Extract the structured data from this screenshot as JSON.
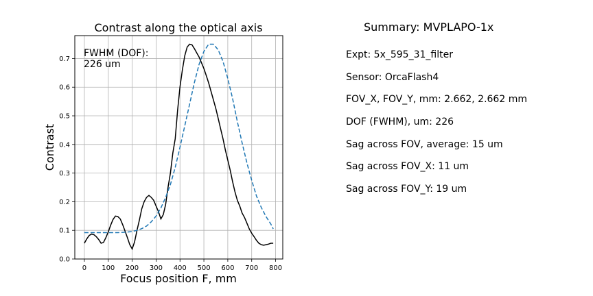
{
  "chart_data": {
    "type": "line",
    "title": "Contrast along the optical axis",
    "xlabel": "Focus position F, mm",
    "ylabel": "Contrast",
    "xlim": [
      -40,
      830
    ],
    "ylim": [
      0.0,
      0.78
    ],
    "xticks": [
      0,
      100,
      200,
      300,
      400,
      500,
      600,
      700,
      800
    ],
    "yticks": [
      0.0,
      0.1,
      0.2,
      0.3,
      0.4,
      0.5,
      0.6,
      0.7
    ],
    "grid": true,
    "annotation": "FWHM (DOF):\n226 um",
    "series": [
      {
        "style": "solid",
        "color": "#000000",
        "x": [
          0,
          10,
          20,
          30,
          40,
          50,
          60,
          70,
          80,
          90,
          100,
          110,
          120,
          130,
          140,
          150,
          160,
          170,
          180,
          190,
          200,
          210,
          220,
          230,
          240,
          250,
          260,
          270,
          280,
          290,
          300,
          310,
          320,
          330,
          340,
          350,
          360,
          370,
          380,
          390,
          400,
          410,
          420,
          430,
          440,
          450,
          460,
          470,
          480,
          490,
          500,
          510,
          520,
          530,
          540,
          550,
          560,
          570,
          580,
          590,
          600,
          610,
          620,
          630,
          640,
          650,
          660,
          670,
          680,
          690,
          700,
          710,
          720,
          730,
          740,
          750,
          760,
          770,
          780,
          790
        ],
        "y": [
          0.055,
          0.07,
          0.082,
          0.087,
          0.085,
          0.078,
          0.068,
          0.055,
          0.058,
          0.075,
          0.095,
          0.118,
          0.138,
          0.15,
          0.148,
          0.14,
          0.12,
          0.098,
          0.075,
          0.05,
          0.035,
          0.06,
          0.1,
          0.135,
          0.175,
          0.2,
          0.215,
          0.222,
          0.215,
          0.205,
          0.185,
          0.165,
          0.14,
          0.155,
          0.19,
          0.25,
          0.3,
          0.37,
          0.42,
          0.52,
          0.6,
          0.66,
          0.71,
          0.74,
          0.75,
          0.748,
          0.735,
          0.72,
          0.705,
          0.685,
          0.665,
          0.64,
          0.615,
          0.585,
          0.555,
          0.525,
          0.49,
          0.455,
          0.42,
          0.38,
          0.345,
          0.31,
          0.27,
          0.235,
          0.205,
          0.185,
          0.16,
          0.145,
          0.125,
          0.105,
          0.09,
          0.078,
          0.065,
          0.055,
          0.05,
          0.048,
          0.05,
          0.052,
          0.055,
          0.055
        ]
      },
      {
        "style": "dashed",
        "color": "#1f77b4",
        "x": [
          0,
          20,
          40,
          60,
          80,
          100,
          120,
          140,
          160,
          180,
          200,
          220,
          240,
          260,
          280,
          300,
          320,
          340,
          360,
          380,
          400,
          420,
          440,
          460,
          480,
          500,
          520,
          540,
          560,
          580,
          600,
          620,
          640,
          660,
          680,
          700,
          720,
          740,
          760,
          780,
          790
        ],
        "y": [
          0.092,
          0.092,
          0.092,
          0.092,
          0.092,
          0.092,
          0.092,
          0.092,
          0.093,
          0.094,
          0.096,
          0.1,
          0.106,
          0.115,
          0.13,
          0.15,
          0.178,
          0.215,
          0.26,
          0.32,
          0.39,
          0.465,
          0.54,
          0.615,
          0.68,
          0.725,
          0.75,
          0.75,
          0.73,
          0.69,
          0.63,
          0.56,
          0.48,
          0.405,
          0.335,
          0.275,
          0.22,
          0.18,
          0.148,
          0.122,
          0.105
        ]
      }
    ]
  },
  "summary": {
    "title": "Summary: MVPLAPO-1x",
    "lines": [
      "Expt: 5x_595_31_filter",
      "Sensor: OrcaFlash4",
      "FOV_X, FOV_Y, mm: 2.662, 2.662 mm",
      "DOF (FWHM), um: 226",
      "Sag across FOV, average: 15 um",
      "Sag across FOV_X: 11 um",
      "Sag across FOV_Y: 19 um"
    ]
  }
}
